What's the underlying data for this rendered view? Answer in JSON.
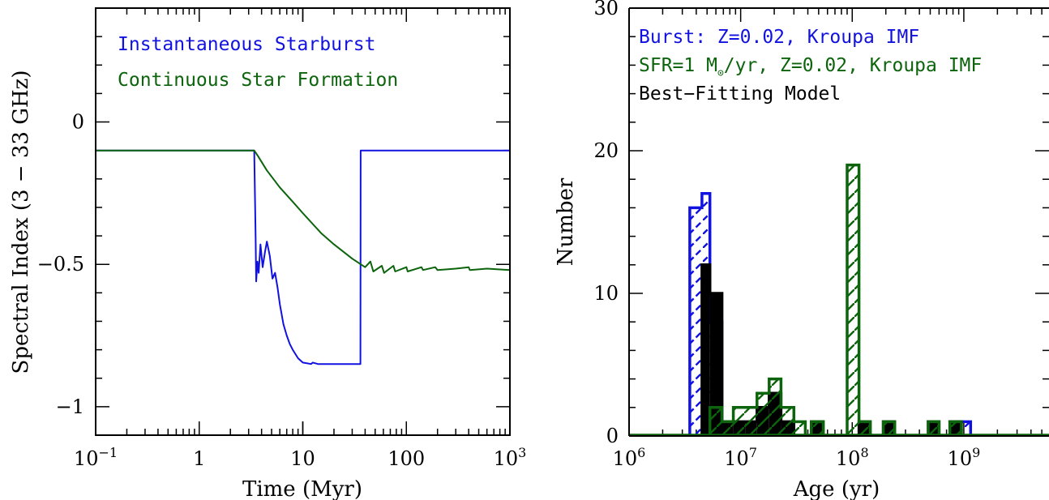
{
  "colors": {
    "blue": "#1212e0",
    "green": "#0c640c",
    "black": "#000000"
  },
  "chart_data": [
    {
      "type": "line",
      "xscale": "log",
      "xlim": [
        0.1,
        1000
      ],
      "ylim": [
        -1.1,
        0.4
      ],
      "xlabel": "Time (Myr)",
      "ylabel": "Spectral Index (3 − 33 GHz)",
      "xtick_labels": [
        {
          "base": "10",
          "exp": "−1"
        },
        {
          "base": "1",
          "exp": ""
        },
        {
          "base": "10",
          "exp": ""
        },
        {
          "base": "100",
          "exp": ""
        },
        {
          "base": "10",
          "exp": "3"
        }
      ],
      "ytick_labels": [
        "0",
        "−0.5",
        "−1"
      ],
      "legend_location": "top-left",
      "series": [
        {
          "name": "Instantaneous Starburst",
          "color": "#1212e0",
          "points": [
            [
              0.1,
              -0.1
            ],
            [
              3.4,
              -0.1
            ],
            [
              3.5,
              -0.4
            ],
            [
              3.55,
              -0.56
            ],
            [
              3.65,
              -0.49
            ],
            [
              3.75,
              -0.53
            ],
            [
              3.9,
              -0.43
            ],
            [
              4.1,
              -0.51
            ],
            [
              4.3,
              -0.46
            ],
            [
              4.5,
              -0.42
            ],
            [
              4.8,
              -0.47
            ],
            [
              5.1,
              -0.55
            ],
            [
              5.4,
              -0.53
            ],
            [
              5.7,
              -0.58
            ],
            [
              6.0,
              -0.64
            ],
            [
              6.5,
              -0.71
            ],
            [
              7.0,
              -0.75
            ],
            [
              7.5,
              -0.78
            ],
            [
              8.0,
              -0.8
            ],
            [
              9.0,
              -0.83
            ],
            [
              10.0,
              -0.845
            ],
            [
              12.0,
              -0.85
            ],
            [
              12.5,
              -0.845
            ],
            [
              14.0,
              -0.85
            ],
            [
              20.0,
              -0.85
            ],
            [
              36.0,
              -0.85
            ],
            [
              36.2,
              -0.1
            ],
            [
              1000,
              -0.1
            ]
          ]
        },
        {
          "name": "Continuous Star Formation",
          "color": "#0c640c",
          "points": [
            [
              0.1,
              -0.1
            ],
            [
              3.4,
              -0.1
            ],
            [
              3.7,
              -0.12
            ],
            [
              4.5,
              -0.17
            ],
            [
              6.0,
              -0.23
            ],
            [
              8.0,
              -0.28
            ],
            [
              10.0,
              -0.32
            ],
            [
              15.0,
              -0.39
            ],
            [
              20.0,
              -0.43
            ],
            [
              30.0,
              -0.48
            ],
            [
              40.0,
              -0.51
            ],
            [
              45.0,
              -0.49
            ],
            [
              48.0,
              -0.525
            ],
            [
              58.0,
              -0.505
            ],
            [
              61.0,
              -0.53
            ],
            [
              75.0,
              -0.505
            ],
            [
              78.0,
              -0.525
            ],
            [
              100.0,
              -0.51
            ],
            [
              103.0,
              -0.525
            ],
            [
              140.0,
              -0.51
            ],
            [
              145.0,
              -0.52
            ],
            [
              190.0,
              -0.51
            ],
            [
              200.0,
              -0.52
            ],
            [
              300.0,
              -0.515
            ],
            [
              400.0,
              -0.51
            ],
            [
              410.0,
              -0.52
            ],
            [
              600.0,
              -0.515
            ],
            [
              1000.0,
              -0.52
            ]
          ]
        }
      ]
    },
    {
      "type": "bar",
      "subtype": "histogram",
      "xscale": "log",
      "xlim": [
        1000000,
        5800000000
      ],
      "ylim": [
        0,
        30
      ],
      "xlabel": "Age (yr)",
      "ylabel": "Number",
      "xtick_labels": [
        {
          "base": "10",
          "exp": "6"
        },
        {
          "base": "10",
          "exp": "7"
        },
        {
          "base": "10",
          "exp": "8"
        },
        {
          "base": "10",
          "exp": "9"
        }
      ],
      "ytick_labels": [
        "0",
        "10",
        "20",
        "30"
      ],
      "legend_location": "top-left",
      "legend": [
        {
          "label": "Burst: Z=0.02, Kroupa IMF",
          "color": "#1212e0"
        },
        {
          "label_pre": "SFR=1 M",
          "label_sub": "⊙",
          "label_post": "/yr, Z=0.02, Kroupa IMF",
          "color": "#0c640c"
        },
        {
          "label": "Best−Fitting Model",
          "color": "#000000"
        }
      ],
      "series": [
        {
          "name": "Burst: Z=0.02, Kroupa IMF",
          "color": "#1212e0",
          "fill": "hatch",
          "bins": [
            {
              "left": 3500000,
              "right": 4500000,
              "count": 16
            },
            {
              "left": 4500000,
              "right": 5300000,
              "count": 17
            },
            {
              "left": 5300000,
              "right": 6800000,
              "count": 8
            },
            {
              "left": 900000000,
              "right": 1150000000,
              "count": 1
            }
          ]
        },
        {
          "name": "Best−Fitting Model",
          "color": "#000000",
          "fill": "solid",
          "bins": [
            {
              "left": 4500000,
              "right": 5300000,
              "count": 12
            },
            {
              "left": 5300000,
              "right": 6800000,
              "count": 10
            },
            {
              "left": 6800000,
              "right": 8600000,
              "count": 1
            },
            {
              "left": 8600000,
              "right": 11000000,
              "count": 1
            },
            {
              "left": 11000000,
              "right": 14000000,
              "count": 1
            },
            {
              "left": 14000000,
              "right": 18000000,
              "count": 2
            },
            {
              "left": 18000000,
              "right": 23000000,
              "count": 3
            },
            {
              "left": 23000000,
              "right": 30000000,
              "count": 1
            },
            {
              "left": 43000000,
              "right": 55000000,
              "count": 1
            },
            {
              "left": 115000000,
              "right": 145000000,
              "count": 1
            },
            {
              "left": 190000000,
              "right": 240000000,
              "count": 1
            },
            {
              "left": 480000000,
              "right": 600000000,
              "count": 1
            },
            {
              "left": 750000000,
              "right": 950000000,
              "count": 1
            }
          ]
        },
        {
          "name": "SFR=1 M⊙/yr, Z=0.02, Kroupa IMF",
          "color": "#0c640c",
          "fill": "hatch",
          "bins": [
            {
              "left": 5300000,
              "right": 6800000,
              "count": 2
            },
            {
              "left": 6800000,
              "right": 8600000,
              "count": 1
            },
            {
              "left": 8600000,
              "right": 11000000,
              "count": 2
            },
            {
              "left": 11000000,
              "right": 14000000,
              "count": 2
            },
            {
              "left": 14000000,
              "right": 18000000,
              "count": 3
            },
            {
              "left": 18000000,
              "right": 23000000,
              "count": 4
            },
            {
              "left": 23000000,
              "right": 30000000,
              "count": 2
            },
            {
              "left": 30000000,
              "right": 38000000,
              "count": 1
            },
            {
              "left": 43000000,
              "right": 55000000,
              "count": 1
            },
            {
              "left": 90000000,
              "right": 115000000,
              "count": 19
            },
            {
              "left": 115000000,
              "right": 145000000,
              "count": 1
            },
            {
              "left": 190000000,
              "right": 240000000,
              "count": 1
            },
            {
              "left": 480000000,
              "right": 600000000,
              "count": 1
            },
            {
              "left": 750000000,
              "right": 950000000,
              "count": 1
            }
          ]
        }
      ]
    }
  ]
}
